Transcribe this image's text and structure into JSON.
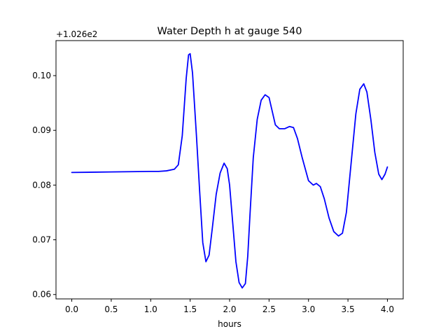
{
  "chart_data": {
    "type": "line",
    "title": "Water Depth h at gauge 540",
    "xlabel": "hours",
    "ylabel": "",
    "y_offset_label": "+1.026e2",
    "xlim": [
      -0.2,
      4.2
    ],
    "ylim": [
      0.0592,
      0.1064
    ],
    "xticks": [
      0.0,
      0.5,
      1.0,
      1.5,
      2.0,
      2.5,
      3.0,
      3.5,
      4.0
    ],
    "xtick_labels": [
      "0.0",
      "0.5",
      "1.0",
      "1.5",
      "2.0",
      "2.5",
      "3.0",
      "3.5",
      "4.0"
    ],
    "yticks": [
      0.06,
      0.07,
      0.08,
      0.09,
      0.1
    ],
    "ytick_labels": [
      "0.06",
      "0.07",
      "0.08",
      "0.09",
      "0.10"
    ],
    "grid": false,
    "series": [
      {
        "color": "#0000ff",
        "x": [
          0.0,
          0.5,
          1.0,
          1.1,
          1.2,
          1.3,
          1.35,
          1.4,
          1.45,
          1.48,
          1.5,
          1.53,
          1.58,
          1.62,
          1.66,
          1.7,
          1.74,
          1.78,
          1.83,
          1.88,
          1.93,
          1.97,
          2.0,
          2.04,
          2.08,
          2.12,
          2.16,
          2.2,
          2.23,
          2.26,
          2.3,
          2.35,
          2.4,
          2.45,
          2.5,
          2.54,
          2.58,
          2.63,
          2.7,
          2.76,
          2.81,
          2.86,
          2.92,
          3.0,
          3.06,
          3.1,
          3.15,
          3.2,
          3.26,
          3.32,
          3.38,
          3.43,
          3.48,
          3.54,
          3.6,
          3.65,
          3.7,
          3.74,
          3.79,
          3.84,
          3.89,
          3.93,
          3.97,
          4.0
        ],
        "y": [
          0.0823,
          0.0824,
          0.0825,
          0.0825,
          0.0826,
          0.0829,
          0.0837,
          0.089,
          0.0995,
          0.1038,
          0.104,
          0.1005,
          0.089,
          0.079,
          0.0695,
          0.066,
          0.0672,
          0.072,
          0.0783,
          0.0822,
          0.084,
          0.083,
          0.08,
          0.073,
          0.066,
          0.0622,
          0.0612,
          0.062,
          0.067,
          0.075,
          0.085,
          0.092,
          0.0955,
          0.0965,
          0.096,
          0.0935,
          0.091,
          0.0903,
          0.0903,
          0.0907,
          0.0905,
          0.0885,
          0.085,
          0.0808,
          0.08,
          0.0803,
          0.0797,
          0.0775,
          0.074,
          0.0715,
          0.0707,
          0.0712,
          0.075,
          0.084,
          0.093,
          0.0975,
          0.0985,
          0.097,
          0.092,
          0.086,
          0.082,
          0.081,
          0.082,
          0.0833
        ]
      }
    ]
  }
}
